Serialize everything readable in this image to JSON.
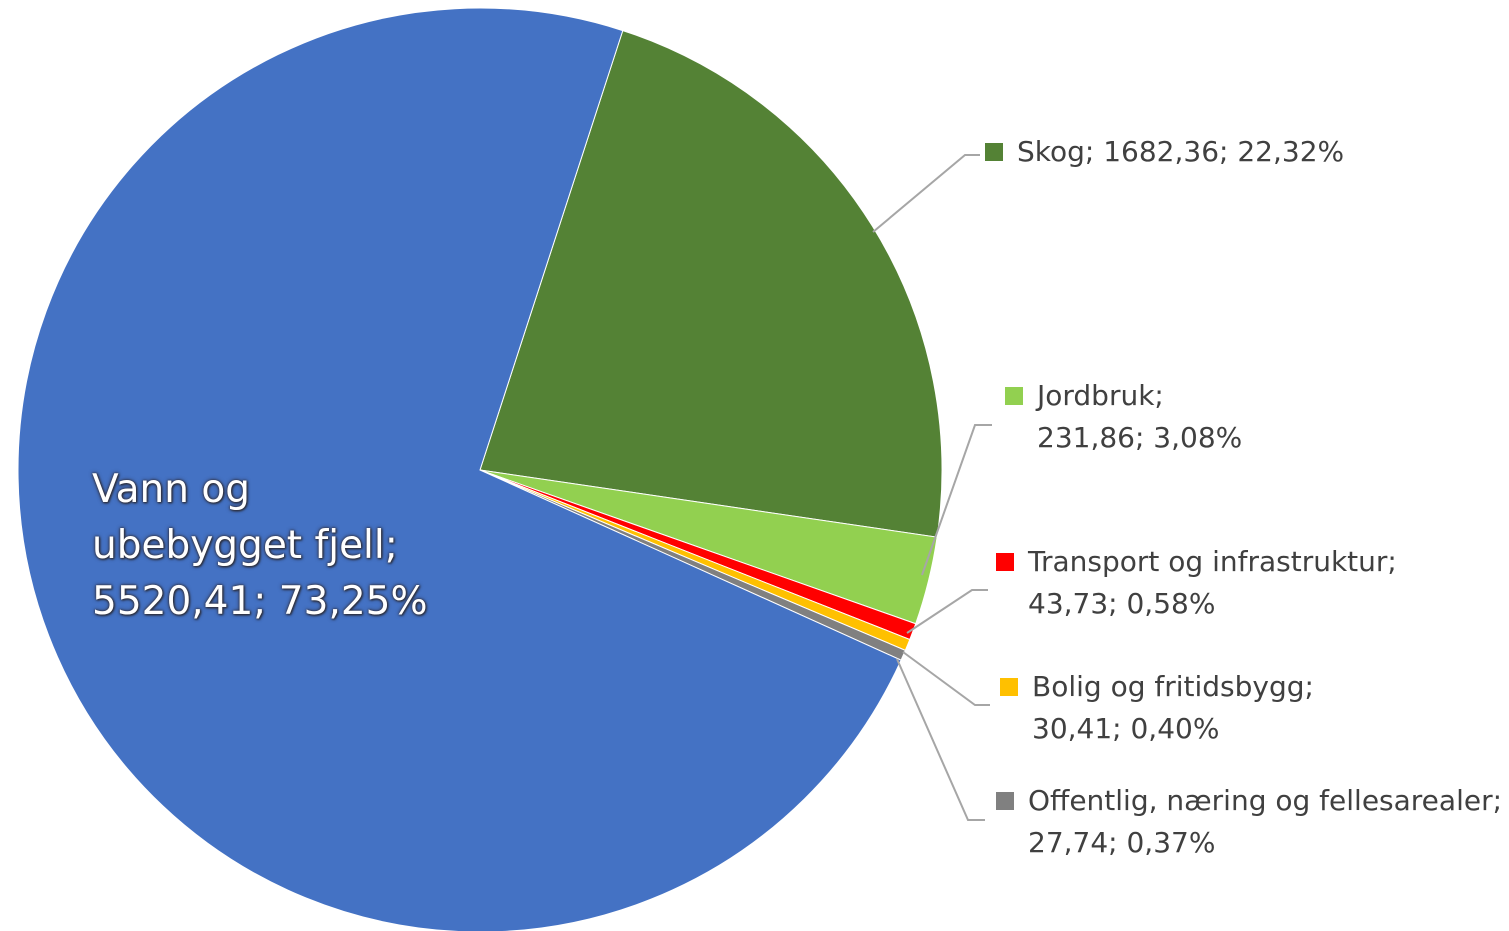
{
  "chart_data": {
    "type": "pie",
    "unit_note": "",
    "slices": [
      {
        "name": "Vann og ubebygget fjell",
        "value": 5520.41,
        "value_label": "5520,41",
        "percent_label": "73,25%",
        "color": "#4472C4"
      },
      {
        "name": "Skog",
        "value": 1682.36,
        "value_label": "1682,36",
        "percent_label": "22,32%",
        "color": "#548235"
      },
      {
        "name": "Jordbruk",
        "value": 231.86,
        "value_label": "231,86",
        "percent_label": "3,08%",
        "color": "#92D050"
      },
      {
        "name": "Transport og infrastruktur",
        "value": 43.73,
        "value_label": "43,73",
        "percent_label": "0,58%",
        "color": "#FF0000"
      },
      {
        "name": "Bolig og fritidsbygg",
        "value": 30.41,
        "value_label": "30,41",
        "percent_label": "0,40%",
        "color": "#FFC000"
      },
      {
        "name": "Offentlig, næring og fellesarealer",
        "value": 27.74,
        "value_label": "27,74",
        "percent_label": "0,37%",
        "color": "#808080"
      }
    ],
    "labels": {
      "vann_line1": "Vann og",
      "vann_line2": "ubebygget fjell;",
      "vann_line3": "5520,41; 73,25%",
      "skog": "Skog; 1682,36; 22,32%",
      "jordbruk_line1": "Jordbruk;",
      "jordbruk_line2": "231,86; 3,08%",
      "transport_line1": "Transport og infrastruktur;",
      "transport_line2": "43,73; 0,58%",
      "bolig_line1": "Bolig og fritidsbygg;",
      "bolig_line2": "30,41; 0,40%",
      "offentlig_line1": "Offentlig, næring og fellesarealer;",
      "offentlig_line2": "27,74; 0,37%"
    }
  }
}
